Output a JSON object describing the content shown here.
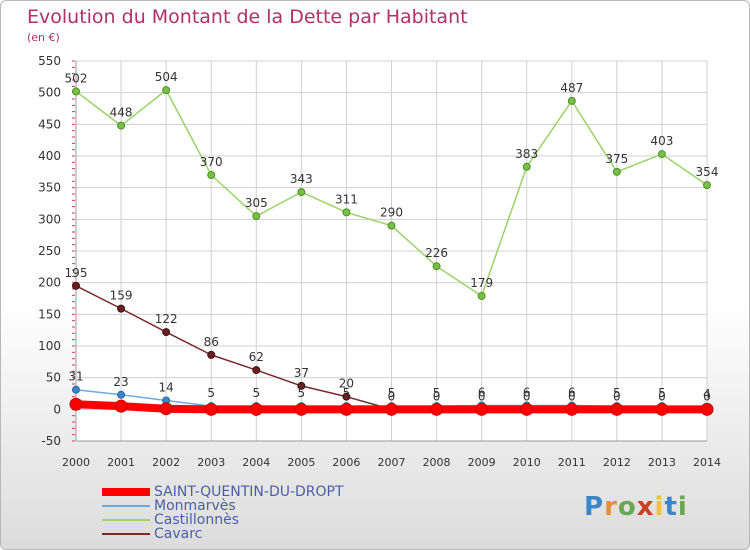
{
  "chart_data": {
    "type": "line",
    "title": "Evolution du Montant de la Dette par Habitant",
    "subtitle": "(en €)",
    "x": [
      "2000",
      "2001",
      "2002",
      "2003",
      "2004",
      "2005",
      "2006",
      "2007",
      "2008",
      "2009",
      "2010",
      "2011",
      "2012",
      "2013",
      "2014"
    ],
    "ylim": [
      -50,
      550
    ],
    "yticks": [
      -50,
      0,
      50,
      100,
      150,
      200,
      250,
      300,
      350,
      400,
      450,
      500,
      550
    ],
    "grid": true,
    "legend_position": "bottom-left",
    "series": [
      {
        "name": "SAINT-QUENTIN-DU-DROPT",
        "color": "#ff0000",
        "values": [
          8,
          5,
          1,
          0,
          0,
          0,
          0,
          0,
          0,
          0,
          0,
          0,
          0,
          0,
          0
        ],
        "labels": [
          "",
          "",
          "",
          "",
          "",
          "",
          "",
          "",
          "",
          "",
          "",
          "",
          "",
          "",
          ""
        ]
      },
      {
        "name": "Monmarvès",
        "color": "#6fa8dc",
        "values": [
          31,
          23,
          14,
          5,
          5,
          5,
          5,
          5,
          5,
          6,
          6,
          6,
          5,
          5,
          4
        ],
        "labels": [
          "31",
          "23",
          "14",
          "5",
          "5",
          "5",
          "5",
          "5",
          "5",
          "6",
          "6",
          "6",
          "5",
          "5",
          "4"
        ]
      },
      {
        "name": "Castillonnès",
        "color": "#9ad468",
        "values": [
          502,
          448,
          504,
          370,
          305,
          343,
          311,
          290,
          226,
          179,
          383,
          487,
          375,
          403,
          354
        ],
        "labels": [
          "502",
          "448",
          "504",
          "370",
          "305",
          "343",
          "311",
          "290",
          "226",
          "179",
          "383",
          "487",
          "375",
          "403",
          "354"
        ]
      },
      {
        "name": "Cavarc",
        "color": "#7a2a2a",
        "values": [
          195,
          159,
          122,
          86,
          62,
          37,
          20,
          0,
          0,
          0,
          0,
          0,
          0,
          0,
          0
        ],
        "labels": [
          "195",
          "159",
          "122",
          "86",
          "62",
          "37",
          "20",
          "0",
          "0",
          "0",
          "0",
          "0",
          "0",
          "0",
          "0"
        ]
      }
    ]
  },
  "logo": {
    "text": "Proxiti"
  }
}
